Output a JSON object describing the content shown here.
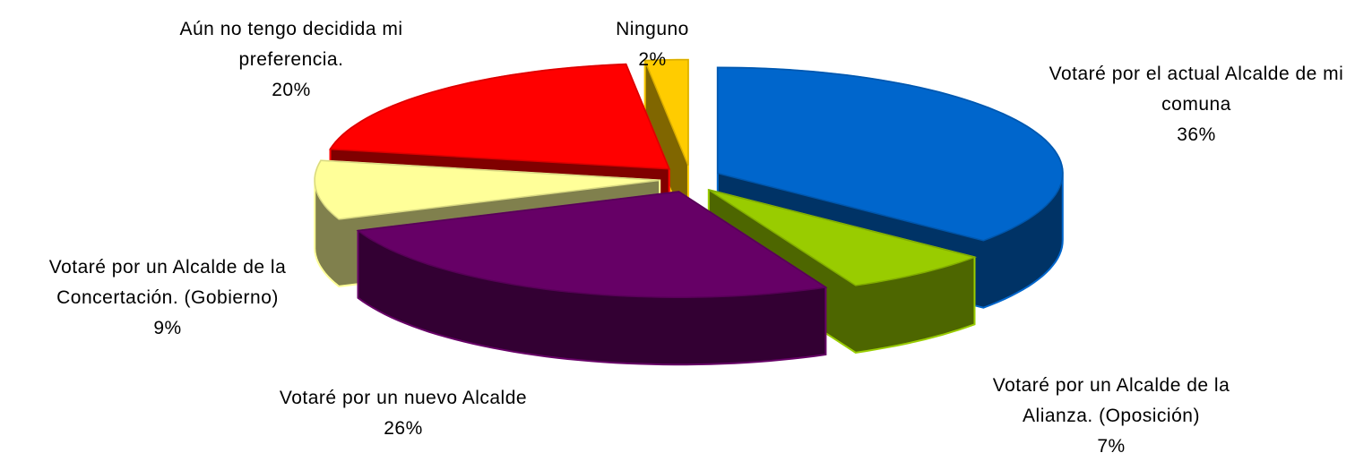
{
  "chart_data": {
    "type": "pie",
    "categories": [
      "Votaré por el actual Alcalde de mi comuna",
      "Votaré por un Alcalde de la Alianza. (Oposición)",
      "Votaré por un nuevo Alcalde",
      "Votaré por un Alcalde de la Concertación. (Gobierno)",
      "Aún no tengo decidida mi preferencia.",
      "Ninguno"
    ],
    "values": [
      36,
      7,
      26,
      9,
      20,
      2
    ],
    "value_labels": [
      "36%",
      "7%",
      "26%",
      "9%",
      "20%",
      "2%"
    ],
    "colors": [
      "#0066cc",
      "#99cc00",
      "#660066",
      "#ffff99",
      "#ff0000",
      "#ffcc00"
    ]
  }
}
